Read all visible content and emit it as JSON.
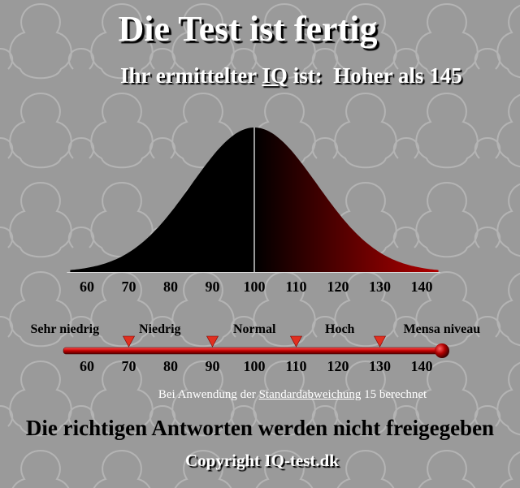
{
  "header": {
    "title": "Die Test ist fertig",
    "result_prefix": "Ihr ermittelter",
    "result_iq": "IQ",
    "result_mid": "ist:",
    "result_value": "Hoher als 145"
  },
  "curve": {
    "type": "area",
    "x_ticks": [
      "60",
      "70",
      "80",
      "90",
      "100",
      "110",
      "120",
      "130",
      "140"
    ],
    "mean": 100,
    "std_dev": 15,
    "xlim": [
      56,
      144
    ]
  },
  "scale": {
    "categories": [
      "Sehr niedrig",
      "Niedrig",
      "Normal",
      "Hoch",
      "Mensa niveau"
    ],
    "boundaries": [
      70,
      90,
      110,
      130
    ],
    "ticks": [
      "60",
      "70",
      "80",
      "90",
      "100",
      "110",
      "120",
      "130",
      "140"
    ]
  },
  "footnote": {
    "prefix": "Bei Anwendung der",
    "link": "Standardabweichung",
    "suffix": "15 berechnet"
  },
  "answers_note": "Die richtigen Antworten werden nicht freigegeben",
  "copyright": "Copyright IQ-test.dk",
  "colors": {
    "background": "#9a9a9a",
    "curve_left": "#000000",
    "curve_right": "#b00000",
    "marker": "#e03020"
  }
}
